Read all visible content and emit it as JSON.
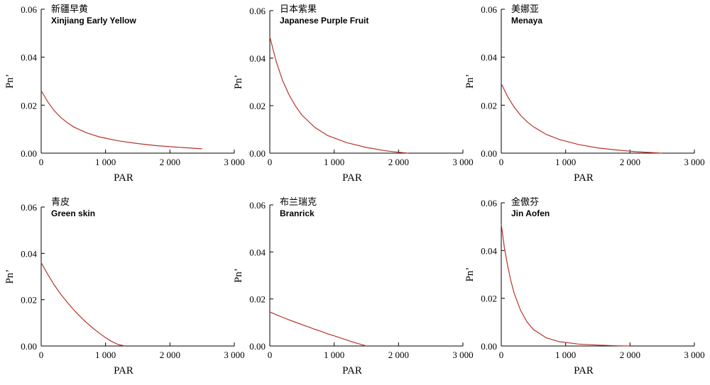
{
  "figure": {
    "x_axis_title": "PAR",
    "y_axis_title": "Pn’",
    "x_ticks": [
      "0",
      "1 000",
      "2 000",
      "3 000"
    ],
    "y_ticks": [
      "0.00",
      "0.02",
      "0.04",
      "0.06"
    ],
    "line_color": "#b5352b"
  },
  "chart_data": [
    {
      "type": "line",
      "title_cn": "新疆早黄",
      "title_en": "Xinjiang Early Yellow",
      "xlabel": "PAR",
      "ylabel": "Pn’",
      "xlim": [
        0,
        3000
      ],
      "ylim": [
        0,
        0.06
      ],
      "x": [
        0,
        100,
        200,
        300,
        400,
        500,
        700,
        900,
        1200,
        1500,
        1800,
        2100,
        2500
      ],
      "y": [
        0.026,
        0.0215,
        0.0178,
        0.015,
        0.0128,
        0.011,
        0.0085,
        0.0068,
        0.0051,
        0.004,
        0.0031,
        0.0025,
        0.0018
      ]
    },
    {
      "type": "line",
      "title_cn": "日本紫果",
      "title_en": "Japanese Purple Fruit",
      "xlabel": "PAR",
      "ylabel": "Pn’",
      "xlim": [
        0,
        3000
      ],
      "ylim": [
        0,
        0.06
      ],
      "x": [
        0,
        100,
        200,
        300,
        400,
        500,
        700,
        900,
        1200,
        1500,
        1800,
        2000,
        2150
      ],
      "y": [
        0.049,
        0.0385,
        0.0305,
        0.0245,
        0.0198,
        0.016,
        0.0108,
        0.0074,
        0.0044,
        0.0024,
        0.001,
        0.0004,
        0.0
      ]
    },
    {
      "type": "line",
      "title_cn": "美娜亚",
      "title_en": "Menaya",
      "xlabel": "PAR",
      "ylabel": "Pn’",
      "xlim": [
        0,
        3000
      ],
      "ylim": [
        0,
        0.06
      ],
      "x": [
        0,
        100,
        200,
        300,
        400,
        500,
        700,
        900,
        1200,
        1500,
        1800,
        2100,
        2500
      ],
      "y": [
        0.029,
        0.0235,
        0.0192,
        0.0158,
        0.0131,
        0.011,
        0.0078,
        0.0057,
        0.0036,
        0.0022,
        0.0013,
        0.0006,
        0.0
      ]
    },
    {
      "type": "line",
      "title_cn": "青皮",
      "title_en": "Green skin",
      "xlabel": "PAR",
      "ylabel": "Pn’",
      "xlim": [
        0,
        3000
      ],
      "ylim": [
        0,
        0.06
      ],
      "x": [
        0,
        100,
        200,
        300,
        400,
        500,
        600,
        700,
        800,
        900,
        1000,
        1100,
        1200,
        1300
      ],
      "y": [
        0.036,
        0.031,
        0.0265,
        0.0225,
        0.019,
        0.0158,
        0.0129,
        0.0102,
        0.0078,
        0.0056,
        0.0036,
        0.0019,
        0.0006,
        0.0
      ]
    },
    {
      "type": "line",
      "title_cn": "布兰瑞克",
      "title_en": "Branrick",
      "xlabel": "PAR",
      "ylabel": "Pn’",
      "xlim": [
        0,
        3000
      ],
      "ylim": [
        0,
        0.06
      ],
      "x": [
        0,
        100,
        200,
        300,
        400,
        500,
        600,
        700,
        800,
        900,
        1000,
        1100,
        1200,
        1300,
        1400,
        1500
      ],
      "y": [
        0.0145,
        0.0133,
        0.0122,
        0.0111,
        0.0101,
        0.0091,
        0.0081,
        0.0071,
        0.0062,
        0.0052,
        0.0043,
        0.0034,
        0.0025,
        0.0016,
        0.0008,
        0.0
      ]
    },
    {
      "type": "line",
      "title_cn": "金傲芬",
      "title_en": "Jin Aofen",
      "xlabel": "PAR",
      "ylabel": "Pn’",
      "xlim": [
        0,
        3000
      ],
      "ylim": [
        0,
        0.06
      ],
      "x": [
        0,
        50,
        100,
        150,
        200,
        300,
        400,
        500,
        700,
        900,
        1200,
        1500,
        1800,
        2000
      ],
      "y": [
        0.051,
        0.041,
        0.0335,
        0.0272,
        0.0222,
        0.0149,
        0.0101,
        0.0069,
        0.0034,
        0.0018,
        0.0008,
        0.0004,
        0.0001,
        0.0
      ]
    }
  ]
}
